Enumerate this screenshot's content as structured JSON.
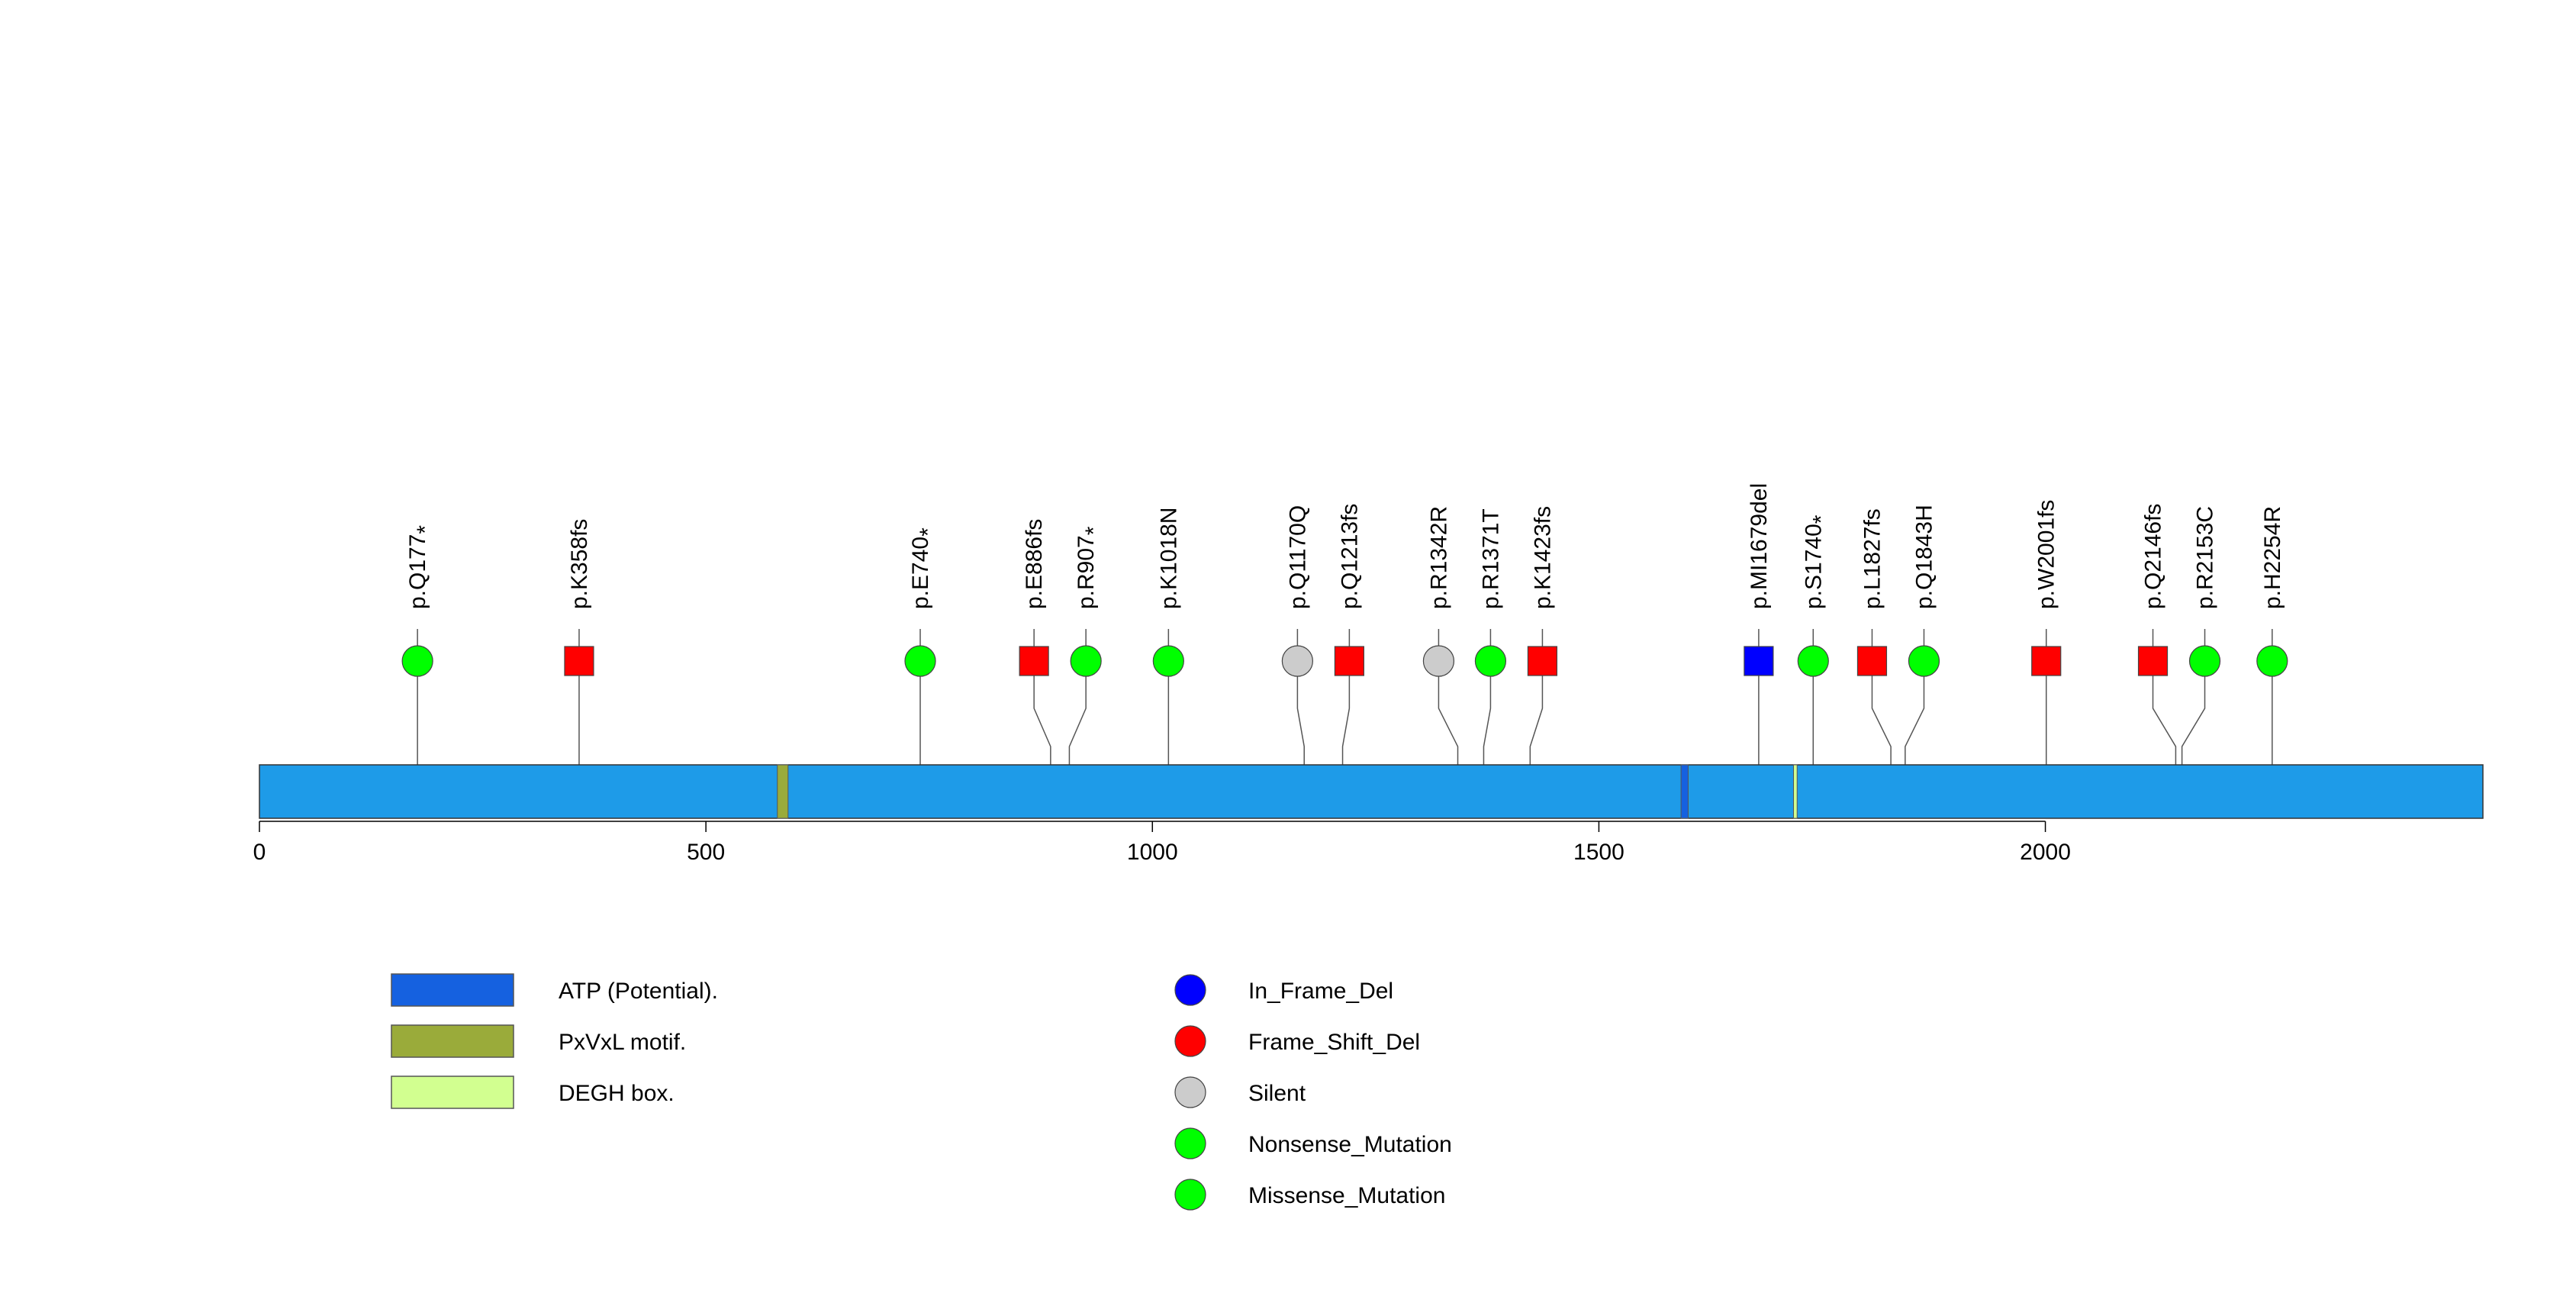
{
  "axis": {
    "min": 0,
    "max": 2490,
    "ticks": [
      0,
      500,
      1000,
      1500,
      2000
    ],
    "tick_labels": [
      "0",
      "500",
      "1000",
      "1500",
      "2000"
    ]
  },
  "protein": {
    "length": 2490,
    "color": "#1e9be8"
  },
  "domains": [
    {
      "label": "ATP (Potential).",
      "start": 1592,
      "end": 1600,
      "color": "#1561e0"
    },
    {
      "label": "PxVxL motif.",
      "start": 580,
      "end": 592,
      "color": "#9aab3a"
    },
    {
      "label": "DEGH box.",
      "start": 1718,
      "end": 1722,
      "color": "#d2ff90"
    }
  ],
  "mutation_types": [
    {
      "name": "In_Frame_Del",
      "color": "#0000ff"
    },
    {
      "name": "Frame_Shift_Del",
      "color": "#ff0000"
    },
    {
      "name": "Silent",
      "color": "#cccccc"
    },
    {
      "name": "Nonsense_Mutation",
      "color": "#00ff00"
    },
    {
      "name": "Missense_Mutation",
      "color": "#00ff00"
    }
  ],
  "mutations": [
    {
      "label": "p.Q177",
      "star": true,
      "pos": 177,
      "shape": "circle",
      "color": "#00ff00"
    },
    {
      "label": "p.K358fs",
      "star": false,
      "pos": 358,
      "shape": "square",
      "color": "#ff0000"
    },
    {
      "label": "p.E740",
      "star": true,
      "pos": 740,
      "shape": "circle",
      "color": "#00ff00"
    },
    {
      "label": "p.E886fs",
      "star": false,
      "pos": 886,
      "shape": "square",
      "color": "#ff0000"
    },
    {
      "label": "p.R907",
      "star": true,
      "pos": 907,
      "shape": "circle",
      "color": "#00ff00"
    },
    {
      "label": "p.K1018N",
      "star": false,
      "pos": 1018,
      "shape": "circle",
      "color": "#00ff00"
    },
    {
      "label": "p.Q1170Q",
      "star": false,
      "pos": 1170,
      "shape": "circle",
      "color": "#cccccc"
    },
    {
      "label": "p.Q1213fs",
      "star": false,
      "pos": 1213,
      "shape": "square",
      "color": "#ff0000"
    },
    {
      "label": "p.R1342R",
      "star": false,
      "pos": 1342,
      "shape": "circle",
      "color": "#cccccc"
    },
    {
      "label": "p.R1371T",
      "star": false,
      "pos": 1371,
      "shape": "circle",
      "color": "#00ff00"
    },
    {
      "label": "p.K1423fs",
      "star": false,
      "pos": 1423,
      "shape": "square",
      "color": "#ff0000"
    },
    {
      "label": "p.MI1679del",
      "star": false,
      "pos": 1679,
      "shape": "square",
      "color": "#0000ff"
    },
    {
      "label": "p.S1740",
      "star": true,
      "pos": 1740,
      "shape": "circle",
      "color": "#00ff00"
    },
    {
      "label": "p.L1827fs",
      "star": false,
      "pos": 1827,
      "shape": "square",
      "color": "#ff0000"
    },
    {
      "label": "p.Q1843H",
      "star": false,
      "pos": 1843,
      "shape": "circle",
      "color": "#00ff00"
    },
    {
      "label": "p.W2001fs",
      "star": false,
      "pos": 2001,
      "shape": "square",
      "color": "#ff0000"
    },
    {
      "label": "p.Q2146fs",
      "star": false,
      "pos": 2146,
      "shape": "square",
      "color": "#ff0000"
    },
    {
      "label": "p.R2153C",
      "star": false,
      "pos": 2153,
      "shape": "circle",
      "color": "#00ff00"
    },
    {
      "label": "p.H2254R",
      "star": false,
      "pos": 2254,
      "shape": "circle",
      "color": "#00ff00"
    }
  ]
}
